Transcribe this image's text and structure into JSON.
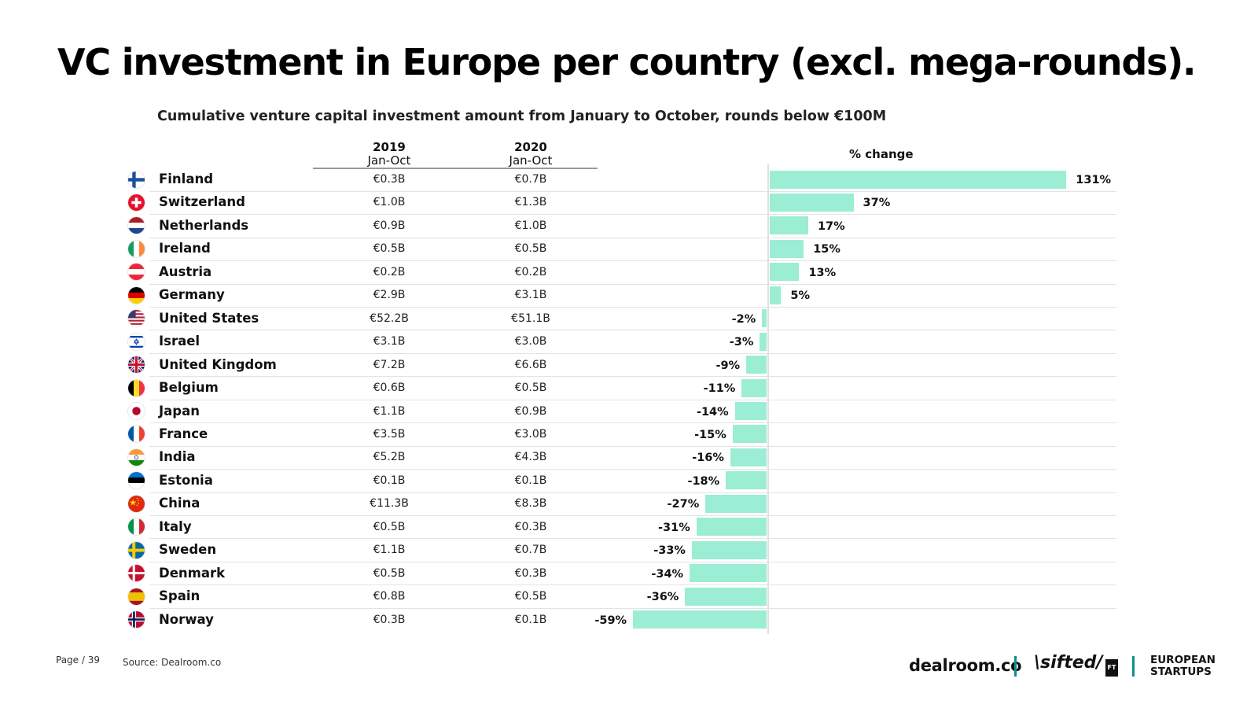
{
  "title": "VC investment in Europe per country (excl. mega-rounds).",
  "subtitle": "Cumulative venture capital investment amount from January to October, rounds below €100M",
  "columns": {
    "col2019_year": "2019",
    "col2019_range": "Jan-Oct",
    "col2020_year": "2020",
    "col2020_range": "Jan-Oct",
    "pct_change": "% change"
  },
  "colors": {
    "bar": "#9beed3",
    "separator": "#0f8f8c"
  },
  "chart_data": {
    "type": "bar",
    "orientation": "horizontal",
    "title": "Cumulative venture capital investment amount from January to October, rounds below €100M",
    "categories": [
      "Finland",
      "Switzerland",
      "Netherlands",
      "Ireland",
      "Austria",
      "Germany",
      "United States",
      "Israel",
      "United Kingdom",
      "Belgium",
      "Japan",
      "France",
      "India",
      "Estonia",
      "China",
      "Italy",
      "Sweden",
      "Denmark",
      "Spain",
      "Norway"
    ],
    "series": [
      {
        "name": "% change",
        "values": [
          131,
          37,
          17,
          15,
          13,
          5,
          -2,
          -3,
          -9,
          -11,
          -14,
          -15,
          -16,
          -18,
          -27,
          -31,
          -33,
          -34,
          -36,
          -59
        ]
      }
    ],
    "labels": [
      "131%",
      "37%",
      "17%",
      "15%",
      "13%",
      "5%",
      "-2%",
      "-3%",
      "-9%",
      "-11%",
      "-14%",
      "-15%",
      "-16%",
      "-18%",
      "-27%",
      "-31%",
      "-33%",
      "-34%",
      "-36%",
      "-59%"
    ],
    "values_2019": [
      "€0.3B",
      "€1.0B",
      "€0.9B",
      "€0.5B",
      "€0.2B",
      "€2.9B",
      "€52.2B",
      "€3.1B",
      "€7.2B",
      "€0.6B",
      "€1.1B",
      "€3.5B",
      "€5.2B",
      "€0.1B",
      "€11.3B",
      "€0.5B",
      "€1.1B",
      "€0.5B",
      "€0.8B",
      "€0.3B"
    ],
    "values_2020": [
      "€0.7B",
      "€1.3B",
      "€1.0B",
      "€0.5B",
      "€0.2B",
      "€3.1B",
      "€51.1B",
      "€3.0B",
      "€6.6B",
      "€0.5B",
      "€0.9B",
      "€3.0B",
      "€4.3B",
      "€0.1B",
      "€8.3B",
      "€0.3B",
      "€0.7B",
      "€0.3B",
      "€0.5B",
      "€0.1B"
    ],
    "flags": [
      "finland-flag-icon",
      "switzerland-flag-icon",
      "netherlands-flag-icon",
      "ireland-flag-icon",
      "austria-flag-icon",
      "germany-flag-icon",
      "united-states-flag-icon",
      "israel-flag-icon",
      "united-kingdom-flag-icon",
      "belgium-flag-icon",
      "japan-flag-icon",
      "france-flag-icon",
      "india-flag-icon",
      "estonia-flag-icon",
      "china-flag-icon",
      "italy-flag-icon",
      "sweden-flag-icon",
      "denmark-flag-icon",
      "spain-flag-icon",
      "norway-flag-icon"
    ]
  },
  "footer": {
    "page": "Page / 39",
    "source": "Source: Dealroom.co",
    "logo_dealroom": "dealroom.co",
    "logo_sifted": "\\sifted/",
    "logo_ft": "FT",
    "logo_es_line1": "EUROPEAN",
    "logo_es_line2": "STARTUPS"
  }
}
